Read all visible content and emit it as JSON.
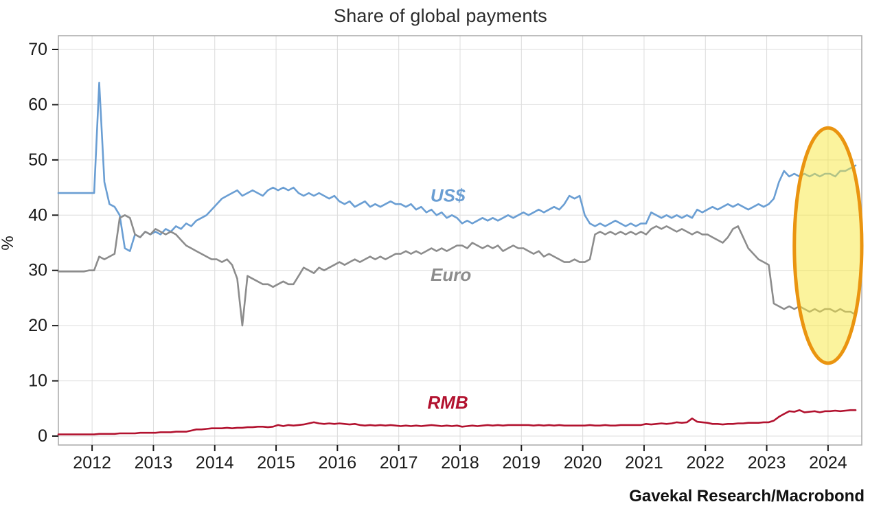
{
  "title": "Share of global payments",
  "source": "Gavekal Research/Macrobond",
  "y_axis_title": "%",
  "colors": {
    "usd_line": "#6a9ed3",
    "euro_line": "#8c8c8c",
    "rmb_line": "#b2122f",
    "grid": "#dcdcdc",
    "plot_border": "#a8a8a8",
    "tick": "#1a1a1a",
    "highlight_fill": "#f7e83c",
    "highlight_stroke": "#ea9410"
  },
  "chart_data": {
    "type": "line",
    "title": "Share of global payments",
    "xlabel": "",
    "ylabel": "%",
    "ylim": [
      0,
      70
    ],
    "yticks": [
      0,
      10,
      20,
      30,
      40,
      50,
      60,
      70
    ],
    "xlim": [
      2011.45,
      2024.55
    ],
    "xticks": [
      2012,
      2013,
      2014,
      2015,
      2016,
      2017,
      2018,
      2019,
      2020,
      2021,
      2022,
      2023,
      2024
    ],
    "grid": true,
    "legend_position": "inline-labels",
    "highlight": {
      "shape": "ellipse",
      "center_x": 2024.0,
      "center_y": 34.5,
      "rx_years": 0.55,
      "ry_pct": 21.3,
      "fill": "#f7e83c",
      "fill_opacity": 0.5,
      "stroke": "#ea9410",
      "stroke_width": 5
    },
    "series": [
      {
        "name": "US$",
        "color": "#6a9ed3",
        "label": {
          "text": "US$",
          "x": 2017.8,
          "y": 43.6
        },
        "start": 2011.45,
        "step": 0.08333,
        "values": [
          44,
          44,
          44,
          44,
          44,
          44,
          44,
          44,
          64,
          46,
          42,
          41.5,
          40,
          34,
          33.5,
          36.5,
          36,
          37,
          36.5,
          37,
          36.5,
          37.5,
          37,
          38,
          37.5,
          38.5,
          38,
          39,
          39.5,
          40,
          41,
          42,
          43,
          43.5,
          44,
          44.5,
          43.5,
          44,
          44.5,
          44,
          43.5,
          44.5,
          45,
          44.5,
          45,
          44.5,
          45,
          44,
          43.5,
          44,
          43.5,
          44,
          43.5,
          43,
          43.5,
          42.5,
          42,
          42.5,
          41.5,
          42,
          42.5,
          41.5,
          42,
          41.5,
          42,
          42.5,
          42,
          42,
          41.5,
          42,
          41,
          41.5,
          40.5,
          41,
          40,
          40.5,
          39.5,
          40,
          39.5,
          38.5,
          39,
          38.5,
          39,
          39.5,
          39,
          39.5,
          39,
          39.5,
          40,
          39.5,
          40,
          40.5,
          40,
          40.5,
          41,
          40.5,
          41,
          41.5,
          41,
          42,
          43.5,
          43,
          43.5,
          40,
          38.5,
          38,
          38.5,
          38,
          38.5,
          39,
          38.5,
          38,
          38.5,
          38,
          38.5,
          38.5,
          40.5,
          40,
          39.5,
          40,
          39.5,
          40,
          39.5,
          40,
          39.5,
          41,
          40.5,
          41,
          41.5,
          41,
          41.5,
          42,
          41.5,
          42,
          41.5,
          41,
          41.5,
          42,
          41.5,
          42,
          43,
          46,
          48,
          47,
          47.5,
          47,
          47.5,
          47,
          47.5,
          47,
          47.5,
          47.5,
          47,
          48,
          48,
          48.5,
          49
        ]
      },
      {
        "name": "Euro",
        "color": "#8c8c8c",
        "label": {
          "text": "Euro",
          "x": 2017.85,
          "y": 29.2
        },
        "start": 2011.45,
        "step": 0.08333,
        "values": [
          29.8,
          29.8,
          29.8,
          29.8,
          29.8,
          29.8,
          30,
          30,
          32.5,
          32,
          32.5,
          33,
          39.5,
          40,
          39.5,
          36.5,
          36,
          37,
          36.5,
          37.5,
          37,
          36.5,
          37,
          36.5,
          35.5,
          34.5,
          34,
          33.5,
          33,
          32.5,
          32,
          32,
          31.5,
          32,
          31,
          28.5,
          20,
          29,
          28.5,
          28,
          27.5,
          27.5,
          27,
          27.5,
          28,
          27.5,
          27.5,
          29,
          30.5,
          30,
          29.5,
          30.5,
          30,
          30.5,
          31,
          31.5,
          31,
          31.5,
          32,
          31.5,
          32,
          32.5,
          32,
          32.5,
          32,
          32.5,
          33,
          33,
          33.5,
          33,
          33.5,
          33,
          33.5,
          34,
          33.5,
          34,
          33.5,
          34,
          34.5,
          34.5,
          34,
          35,
          34.5,
          34,
          34.5,
          34,
          34.5,
          33.5,
          34,
          34.5,
          34,
          34,
          33.5,
          33,
          33.5,
          32.5,
          33,
          32.5,
          32,
          31.5,
          31.5,
          32,
          31.5,
          31.5,
          32,
          36.5,
          37,
          36.5,
          37,
          36.5,
          37,
          36.5,
          37,
          36.5,
          37,
          36.5,
          37.5,
          38,
          37.5,
          38,
          37.5,
          37,
          37.5,
          37,
          36.5,
          37,
          36.5,
          36.5,
          36,
          35.5,
          35,
          36,
          37.5,
          38,
          36,
          34,
          33,
          32,
          31.5,
          31,
          24,
          23.5,
          23,
          23.5,
          23,
          23.5,
          23,
          22.5,
          23,
          22.5,
          23,
          23,
          22.5,
          23,
          22.5,
          22.5,
          22
        ]
      },
      {
        "name": "RMB",
        "color": "#b2122f",
        "label": {
          "text": "RMB",
          "x": 2017.8,
          "y": 6.1
        },
        "start": 2011.45,
        "step": 0.08333,
        "values": [
          0.3,
          0.3,
          0.3,
          0.3,
          0.3,
          0.3,
          0.3,
          0.3,
          0.4,
          0.4,
          0.4,
          0.4,
          0.5,
          0.5,
          0.5,
          0.5,
          0.6,
          0.6,
          0.6,
          0.6,
          0.7,
          0.7,
          0.7,
          0.8,
          0.8,
          0.8,
          1.0,
          1.2,
          1.2,
          1.3,
          1.4,
          1.4,
          1.4,
          1.5,
          1.4,
          1.5,
          1.5,
          1.6,
          1.6,
          1.7,
          1.7,
          1.6,
          1.7,
          2.0,
          1.8,
          2.0,
          1.9,
          2.0,
          2.1,
          2.3,
          2.5,
          2.3,
          2.2,
          2.3,
          2.2,
          2.3,
          2.2,
          2.1,
          2.2,
          2.0,
          1.9,
          2.0,
          1.9,
          2.0,
          1.9,
          2.0,
          1.9,
          1.8,
          1.9,
          1.8,
          1.9,
          1.8,
          1.9,
          2.0,
          1.9,
          1.8,
          1.9,
          1.8,
          1.9,
          1.7,
          1.8,
          1.9,
          1.8,
          1.9,
          2.0,
          1.9,
          2.0,
          1.9,
          2.0,
          2.0,
          2.0,
          2.0,
          2.0,
          1.9,
          2.0,
          1.9,
          2.0,
          1.9,
          2.0,
          1.9,
          1.9,
          1.9,
          1.9,
          1.9,
          2.0,
          1.9,
          1.9,
          2.0,
          1.9,
          1.9,
          2.0,
          2.0,
          2.0,
          2.0,
          2.0,
          2.2,
          2.1,
          2.2,
          2.3,
          2.2,
          2.3,
          2.5,
          2.4,
          2.5,
          3.2,
          2.6,
          2.5,
          2.4,
          2.2,
          2.2,
          2.1,
          2.2,
          2.2,
          2.3,
          2.3,
          2.4,
          2.4,
          2.4,
          2.5,
          2.5,
          2.8,
          3.5,
          4.0,
          4.5,
          4.4,
          4.7,
          4.3,
          4.4,
          4.5,
          4.3,
          4.5,
          4.5,
          4.6,
          4.5,
          4.6,
          4.7,
          4.7
        ]
      }
    ]
  }
}
